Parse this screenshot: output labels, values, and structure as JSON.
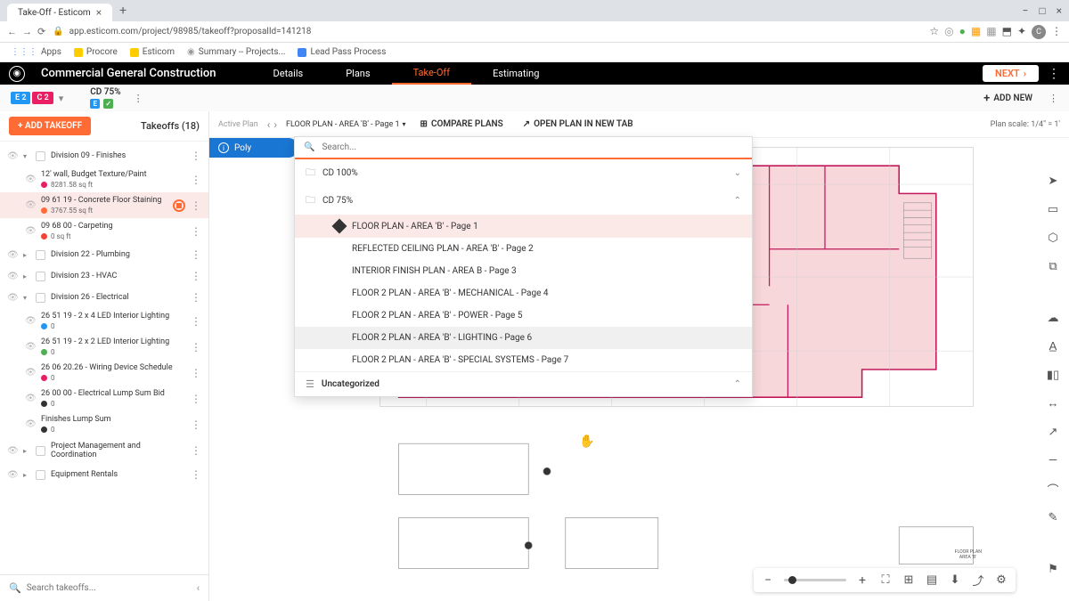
{
  "browser": {
    "tab_title": "Take-Off - Esticom",
    "url": "app.esticom.com/project/98985/takeoff?proposalId=141218",
    "bookmarks": [
      "Apps",
      "Procore",
      "Esticom",
      "Summary -- Projects...",
      "Lead Pass Process"
    ]
  },
  "app": {
    "title": "Commercial General Construction",
    "tabs": [
      "Details",
      "Plans",
      "Take-Off",
      "Estimating"
    ],
    "active_tab": "Take-Off",
    "next_label": "NEXT",
    "add_new_label": "ADD NEW",
    "cd_label": "CD 75%",
    "badge_e2": "E 2",
    "badge_c2": "C 2"
  },
  "sidebar": {
    "add_takeoff_label": "+ ADD TAKEOFF",
    "takeoffs_label": "Takeoffs (18)",
    "search_placeholder": "Search takeoffs...",
    "categories": [
      {
        "name": "Division 09 - Finishes",
        "expanded": true,
        "items": [
          {
            "title": "12' wall, Budget Texture/Paint",
            "value": "8281.58 sq ft",
            "color": "#e91e63"
          },
          {
            "title": "09 61 19 - Concrete Floor Staining",
            "value": "3767.55 sq ft",
            "color": "#ff6b35",
            "highlighted": true,
            "has_icon": true
          },
          {
            "title": "09 68 00 - Carpeting",
            "value": "0 sq ft",
            "color": "#f44336"
          }
        ]
      },
      {
        "name": "Division 22 - Plumbing",
        "expanded": false
      },
      {
        "name": "Division 23 - HVAC",
        "expanded": false
      },
      {
        "name": "Division 26 - Electrical",
        "expanded": true,
        "items": [
          {
            "title": "26 51 19 - 2 x 4 LED Interior Lighting",
            "value": "0",
            "color": "#2196f3"
          },
          {
            "title": "26 51 19 - 2 x 2 LED Interior Lighting",
            "value": "0",
            "color": "#4caf50"
          },
          {
            "title": "26 06 20.26 - Wiring Device Schedule",
            "value": "0",
            "color": "#e91e63"
          },
          {
            "title": "26 00 00 - Electrical Lump Sum Bid",
            "value": "0",
            "color": "#333"
          },
          {
            "title": "Finishes Lump Sum",
            "value": "0",
            "color": "#333"
          }
        ]
      },
      {
        "name": "Project Management and Coordination",
        "expanded": false
      },
      {
        "name": "Equipment Rentals",
        "expanded": false
      }
    ]
  },
  "canvas": {
    "active_plan_label": "Active Plan",
    "plan_name": "FLOOR PLAN - AREA 'B' - Page 1",
    "compare_label": "COMPARE PLANS",
    "newtab_label": "OPEN PLAN IN NEW TAB",
    "scale_label": "Plan scale:",
    "scale_value": "1/4\" = 1'",
    "poly_label": "Poly"
  },
  "dropdown": {
    "search_placeholder": "Search...",
    "folders": [
      {
        "name": "CD 100%",
        "expanded": false
      },
      {
        "name": "CD 75%",
        "expanded": true
      }
    ],
    "items": [
      {
        "label": "FLOOR PLAN - AREA 'B' - Page 1",
        "active": true
      },
      {
        "label": "REFLECTED CEILING PLAN - AREA 'B' - Page 2"
      },
      {
        "label": "INTERIOR FINISH PLAN - AREA B - Page 3"
      },
      {
        "label": "FLOOR 2 PLAN - AREA 'B' - MECHANICAL - Page 4"
      },
      {
        "label": "FLOOR 2 PLAN - AREA 'B' - POWER - Page 5"
      },
      {
        "label": "FLOOR 2 PLAN - AREA 'B' - LIGHTING - Page 6",
        "hover": true
      },
      {
        "label": "FLOOR 2 PLAN - AREA 'B' - SPECIAL SYSTEMS - Page 7"
      }
    ],
    "uncategorized_label": "Uncategorized"
  },
  "floorplan": {
    "fill_color": "#f8d7da",
    "stroke_color": "#c2185b",
    "bg_color": "#ffffff",
    "grid_color": "#dcdcdc",
    "title": "FLOOR PLAN - AREA 'B'"
  }
}
